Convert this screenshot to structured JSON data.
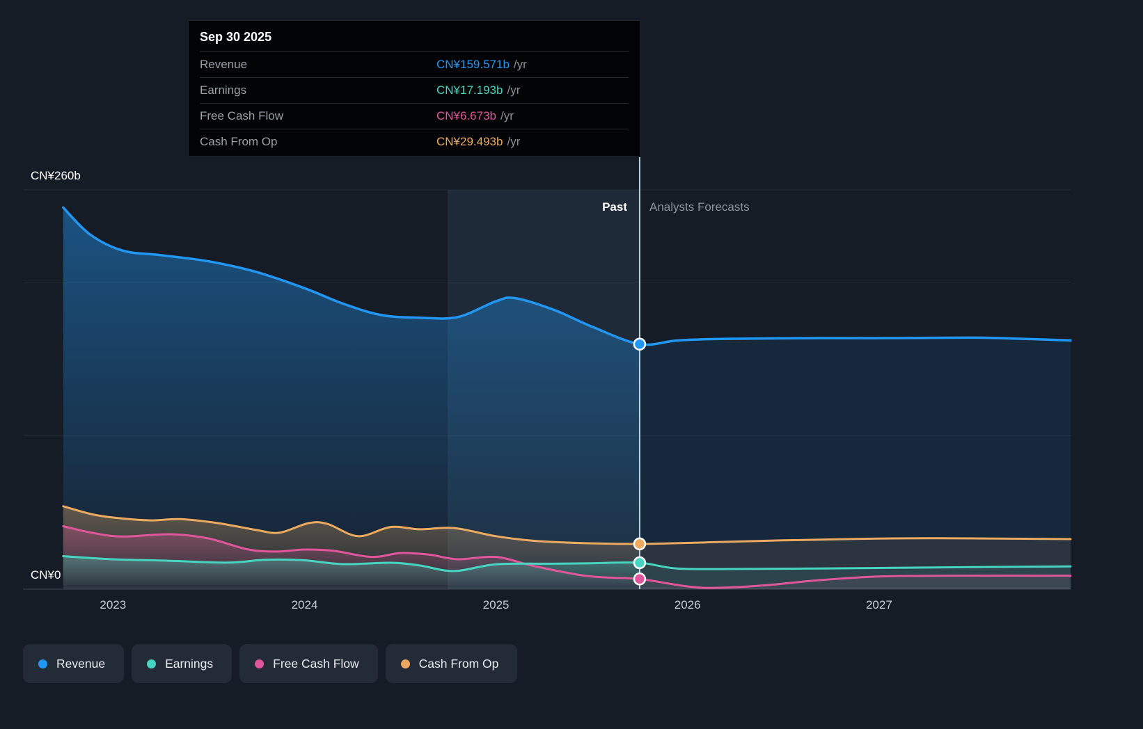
{
  "page": {
    "background": "#161c26"
  },
  "tooltip": {
    "title": "Sep 30 2025",
    "rows": [
      {
        "label": "Revenue",
        "value": "CN¥159.571b",
        "unit": "/yr",
        "color": "#2196f3"
      },
      {
        "label": "Earnings",
        "value": "CN¥17.193b",
        "unit": "/yr",
        "color": "#47d4c1"
      },
      {
        "label": "Free Cash Flow",
        "value": "CN¥6.673b",
        "unit": "/yr",
        "color": "#e0569a"
      },
      {
        "label": "Cash From Op",
        "value": "CN¥29.493b",
        "unit": "/yr",
        "color": "#ebaa60"
      }
    ]
  },
  "labels": {
    "past": "Past",
    "forecast": "Analysts Forecasts",
    "y_top": "CN¥260b",
    "y_zero": "CN¥0"
  },
  "legend": [
    {
      "label": "Revenue",
      "color": "#2196f3"
    },
    {
      "label": "Earnings",
      "color": "#47d4c1"
    },
    {
      "label": "Free Cash Flow",
      "color": "#e0569a"
    },
    {
      "label": "Cash From Op",
      "color": "#ebaa60"
    }
  ],
  "chart_data": {
    "type": "area",
    "title": "Revenue, Earnings, Free Cash Flow and Cash From Op history and forecast (CN¥ billions per year)",
    "ylabel": "CN¥b",
    "xlim": [
      2022.53,
      2028.0
    ],
    "ylim": [
      0,
      260
    ],
    "gridlines_y": [
      260,
      200,
      100,
      0
    ],
    "divider_x": 2025.75,
    "divider_date": "Sep 30 2025",
    "highlight_band": [
      2024.75,
      2025.75
    ],
    "x_ticks": [
      {
        "year": 2023,
        "label": "2023"
      },
      {
        "year": 2024,
        "label": "2024"
      },
      {
        "year": 2025,
        "label": "2025"
      },
      {
        "year": 2026,
        "label": "2026"
      },
      {
        "year": 2027,
        "label": "2027"
      }
    ],
    "series": [
      {
        "name": "Revenue",
        "color": "#2196f3",
        "fill_top": 0.45,
        "stroke_width": 3.5,
        "value_at_divider": 159.571,
        "past": [
          [
            2022.74,
            248.5
          ],
          [
            2022.88,
            231
          ],
          [
            2023.05,
            220.5
          ],
          [
            2023.25,
            217.5
          ],
          [
            2023.5,
            213.5
          ],
          [
            2023.75,
            206.5
          ],
          [
            2024.0,
            196
          ],
          [
            2024.2,
            186
          ],
          [
            2024.4,
            178.5
          ],
          [
            2024.6,
            176.8
          ],
          [
            2024.8,
            177.2
          ],
          [
            2025.0,
            187.5
          ],
          [
            2025.1,
            189.5
          ],
          [
            2025.3,
            182
          ],
          [
            2025.5,
            171
          ],
          [
            2025.75,
            159.571
          ]
        ],
        "forecast": [
          [
            2025.75,
            159.571
          ],
          [
            2025.95,
            162
          ],
          [
            2026.2,
            163
          ],
          [
            2026.7,
            163.5
          ],
          [
            2027.1,
            163.5
          ],
          [
            2027.5,
            163.8
          ],
          [
            2027.75,
            163
          ],
          [
            2028.0,
            162
          ]
        ]
      },
      {
        "name": "Cash From Op",
        "color": "#ebaa60",
        "fill_top": 0.35,
        "stroke_width": 3,
        "value_at_divider": 29.493,
        "past": [
          [
            2022.74,
            54
          ],
          [
            2022.9,
            48.5
          ],
          [
            2023.05,
            46
          ],
          [
            2023.2,
            44.8
          ],
          [
            2023.35,
            45.6
          ],
          [
            2023.55,
            43
          ],
          [
            2023.75,
            38.5
          ],
          [
            2023.87,
            36.8
          ],
          [
            2024.02,
            43
          ],
          [
            2024.12,
            42.5
          ],
          [
            2024.28,
            34.5
          ],
          [
            2024.45,
            40.5
          ],
          [
            2024.6,
            39
          ],
          [
            2024.78,
            39.8
          ],
          [
            2025.0,
            34.5
          ],
          [
            2025.2,
            31.5
          ],
          [
            2025.45,
            30
          ],
          [
            2025.75,
            29.493
          ]
        ],
        "forecast": [
          [
            2025.75,
            29.493
          ],
          [
            2026.1,
            30.5
          ],
          [
            2026.5,
            31.8
          ],
          [
            2026.9,
            32.8
          ],
          [
            2027.3,
            33.2
          ],
          [
            2028.0,
            32.6
          ]
        ]
      },
      {
        "name": "Free Cash Flow",
        "color": "#e0569a",
        "fill_top": 0.32,
        "stroke_width": 3,
        "value_at_divider": 6.673,
        "past": [
          [
            2022.74,
            41
          ],
          [
            2022.9,
            36.5
          ],
          [
            2023.05,
            34.3
          ],
          [
            2023.3,
            35.8
          ],
          [
            2023.5,
            33
          ],
          [
            2023.7,
            26
          ],
          [
            2023.85,
            24.5
          ],
          [
            2024.0,
            25.8
          ],
          [
            2024.15,
            25
          ],
          [
            2024.35,
            21
          ],
          [
            2024.5,
            23.5
          ],
          [
            2024.65,
            22.5
          ],
          [
            2024.8,
            19.5
          ],
          [
            2025.0,
            21
          ],
          [
            2025.2,
            15
          ],
          [
            2025.45,
            9
          ],
          [
            2025.6,
            7.5
          ],
          [
            2025.75,
            6.673
          ]
        ],
        "forecast": [
          [
            2025.75,
            6.673
          ],
          [
            2026.0,
            1.8
          ],
          [
            2026.15,
            0.9
          ],
          [
            2026.4,
            2.5
          ],
          [
            2026.7,
            6
          ],
          [
            2027.0,
            8.3
          ],
          [
            2027.4,
            8.8
          ],
          [
            2028.0,
            8.8
          ]
        ]
      },
      {
        "name": "Earnings",
        "color": "#47d4c1",
        "fill_top": 0.35,
        "stroke_width": 3,
        "value_at_divider": 17.193,
        "past": [
          [
            2022.74,
            21.5
          ],
          [
            2023.0,
            19.5
          ],
          [
            2023.3,
            18.5
          ],
          [
            2023.6,
            17.3
          ],
          [
            2023.8,
            19.2
          ],
          [
            2024.0,
            18.8
          ],
          [
            2024.2,
            16.3
          ],
          [
            2024.45,
            17.2
          ],
          [
            2024.6,
            15.5
          ],
          [
            2024.78,
            11.8
          ],
          [
            2025.0,
            16.2
          ],
          [
            2025.3,
            16.6
          ],
          [
            2025.5,
            16.9
          ],
          [
            2025.75,
            17.193
          ]
        ],
        "forecast": [
          [
            2025.75,
            17.193
          ],
          [
            2025.95,
            13.4
          ],
          [
            2026.3,
            13.2
          ],
          [
            2026.8,
            13.6
          ],
          [
            2027.3,
            14.2
          ],
          [
            2028.0,
            14.8
          ]
        ]
      }
    ]
  }
}
